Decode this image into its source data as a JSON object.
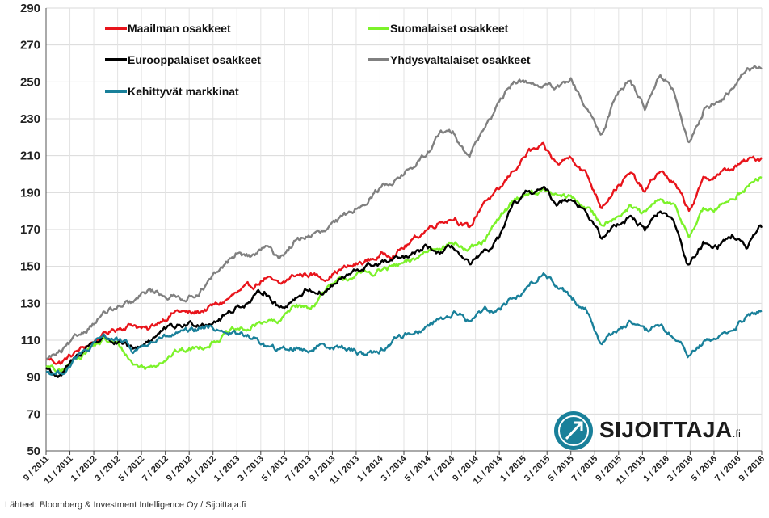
{
  "chart_data": {
    "type": "line",
    "title": "",
    "xlabel": "",
    "ylabel": "",
    "ylim": [
      50,
      290
    ],
    "yticks": [
      50,
      70,
      90,
      110,
      130,
      150,
      170,
      190,
      210,
      230,
      250,
      270,
      290
    ],
    "grid": "horizontal+vertical",
    "legend_placement": "top-left",
    "x_start": "9 / 2011",
    "x_end": "9 / 2016",
    "xtick_labels": [
      "9 / 2011",
      "11 / 2011",
      "1 / 2012",
      "3 / 2012",
      "5 / 2012",
      "7 / 2012",
      "9 / 2012",
      "11 / 2012",
      "1 / 2013",
      "3 / 2013",
      "5 / 2013",
      "7 / 2013",
      "9 / 2013",
      "11 / 2013",
      "1 / 2014",
      "3 / 2014",
      "5 / 2014",
      "7 / 2014",
      "9 / 2014",
      "11 / 2014",
      "1 / 2015",
      "3 / 2015",
      "5 / 2015",
      "7 / 2015",
      "9 / 2015",
      "11 / 2015",
      "1 / 2016",
      "3 / 2016",
      "5 / 2016",
      "7 / 2016",
      "9 / 2016"
    ],
    "series": [
      {
        "name": "Maailman osakkeet",
        "color": "#e8141b",
        "values": [
          100,
          98,
          103,
          108,
          113,
          117,
          119,
          115,
          122,
          126,
          124,
          127,
          130,
          135,
          138,
          144,
          139,
          145,
          146,
          144,
          148,
          150,
          153,
          156,
          158,
          163,
          170,
          175,
          177,
          170,
          186,
          190,
          202,
          212,
          214,
          205,
          210,
          200,
          183,
          193,
          200,
          190,
          202,
          195,
          180,
          196,
          200,
          203,
          207,
          209
        ]
      },
      {
        "name": "Suomalaiset osakkeet",
        "color": "#7cf22a",
        "values": [
          96,
          92,
          100,
          106,
          110,
          107,
          97,
          95,
          100,
          104,
          105,
          108,
          112,
          115,
          116,
          121,
          119,
          130,
          127,
          136,
          141,
          145,
          146,
          148,
          150,
          152,
          158,
          162,
          163,
          158,
          163,
          175,
          186,
          190,
          191,
          188,
          187,
          182,
          173,
          178,
          182,
          178,
          186,
          182,
          167,
          180,
          181,
          188,
          193,
          198
        ]
      },
      {
        "name": "Eurooppalaiset osakkeet",
        "color": "#000000",
        "values": [
          95,
          90,
          100,
          108,
          112,
          108,
          104,
          110,
          115,
          117,
          119,
          120,
          122,
          128,
          131,
          137,
          127,
          133,
          138,
          136,
          142,
          146,
          150,
          152,
          153,
          155,
          160,
          157,
          160,
          150,
          156,
          165,
          182,
          190,
          192,
          184,
          188,
          180,
          165,
          172,
          178,
          170,
          180,
          174,
          150,
          163,
          162,
          167,
          160,
          171
        ]
      },
      {
        "name": "Yhdysvaltalaiset osakkeet",
        "color": "#808080",
        "values": [
          100,
          103,
          110,
          118,
          125,
          127,
          130,
          137,
          135,
          133,
          134,
          140,
          148,
          157,
          155,
          160,
          155,
          163,
          167,
          168,
          174,
          180,
          187,
          193,
          198,
          203,
          210,
          222,
          222,
          210,
          226,
          237,
          250,
          250,
          248,
          246,
          250,
          235,
          220,
          243,
          252,
          236,
          255,
          244,
          215,
          235,
          240,
          245,
          258,
          257
        ]
      },
      {
        "name": "Kehittyvät markkinat",
        "color": "#19809a",
        "values": [
          93,
          92,
          100,
          105,
          112,
          110,
          104,
          108,
          111,
          113,
          114,
          117,
          116,
          113,
          112,
          107,
          104,
          106,
          105,
          108,
          107,
          104,
          103,
          105,
          111,
          114,
          117,
          122,
          125,
          120,
          127,
          127,
          133,
          138,
          147,
          140,
          133,
          127,
          108,
          115,
          120,
          113,
          118,
          111,
          102,
          108,
          112,
          115,
          122,
          126
        ]
      }
    ]
  },
  "logo": {
    "text": "SIJOITTAJA",
    "suffix": ".fi",
    "icon": "arrow-up-right-circle-icon",
    "color": "#19809a"
  },
  "source_text": "Lähteet: Bloomberg & Investment Intelligence Oy / Sijoittaja.fi"
}
